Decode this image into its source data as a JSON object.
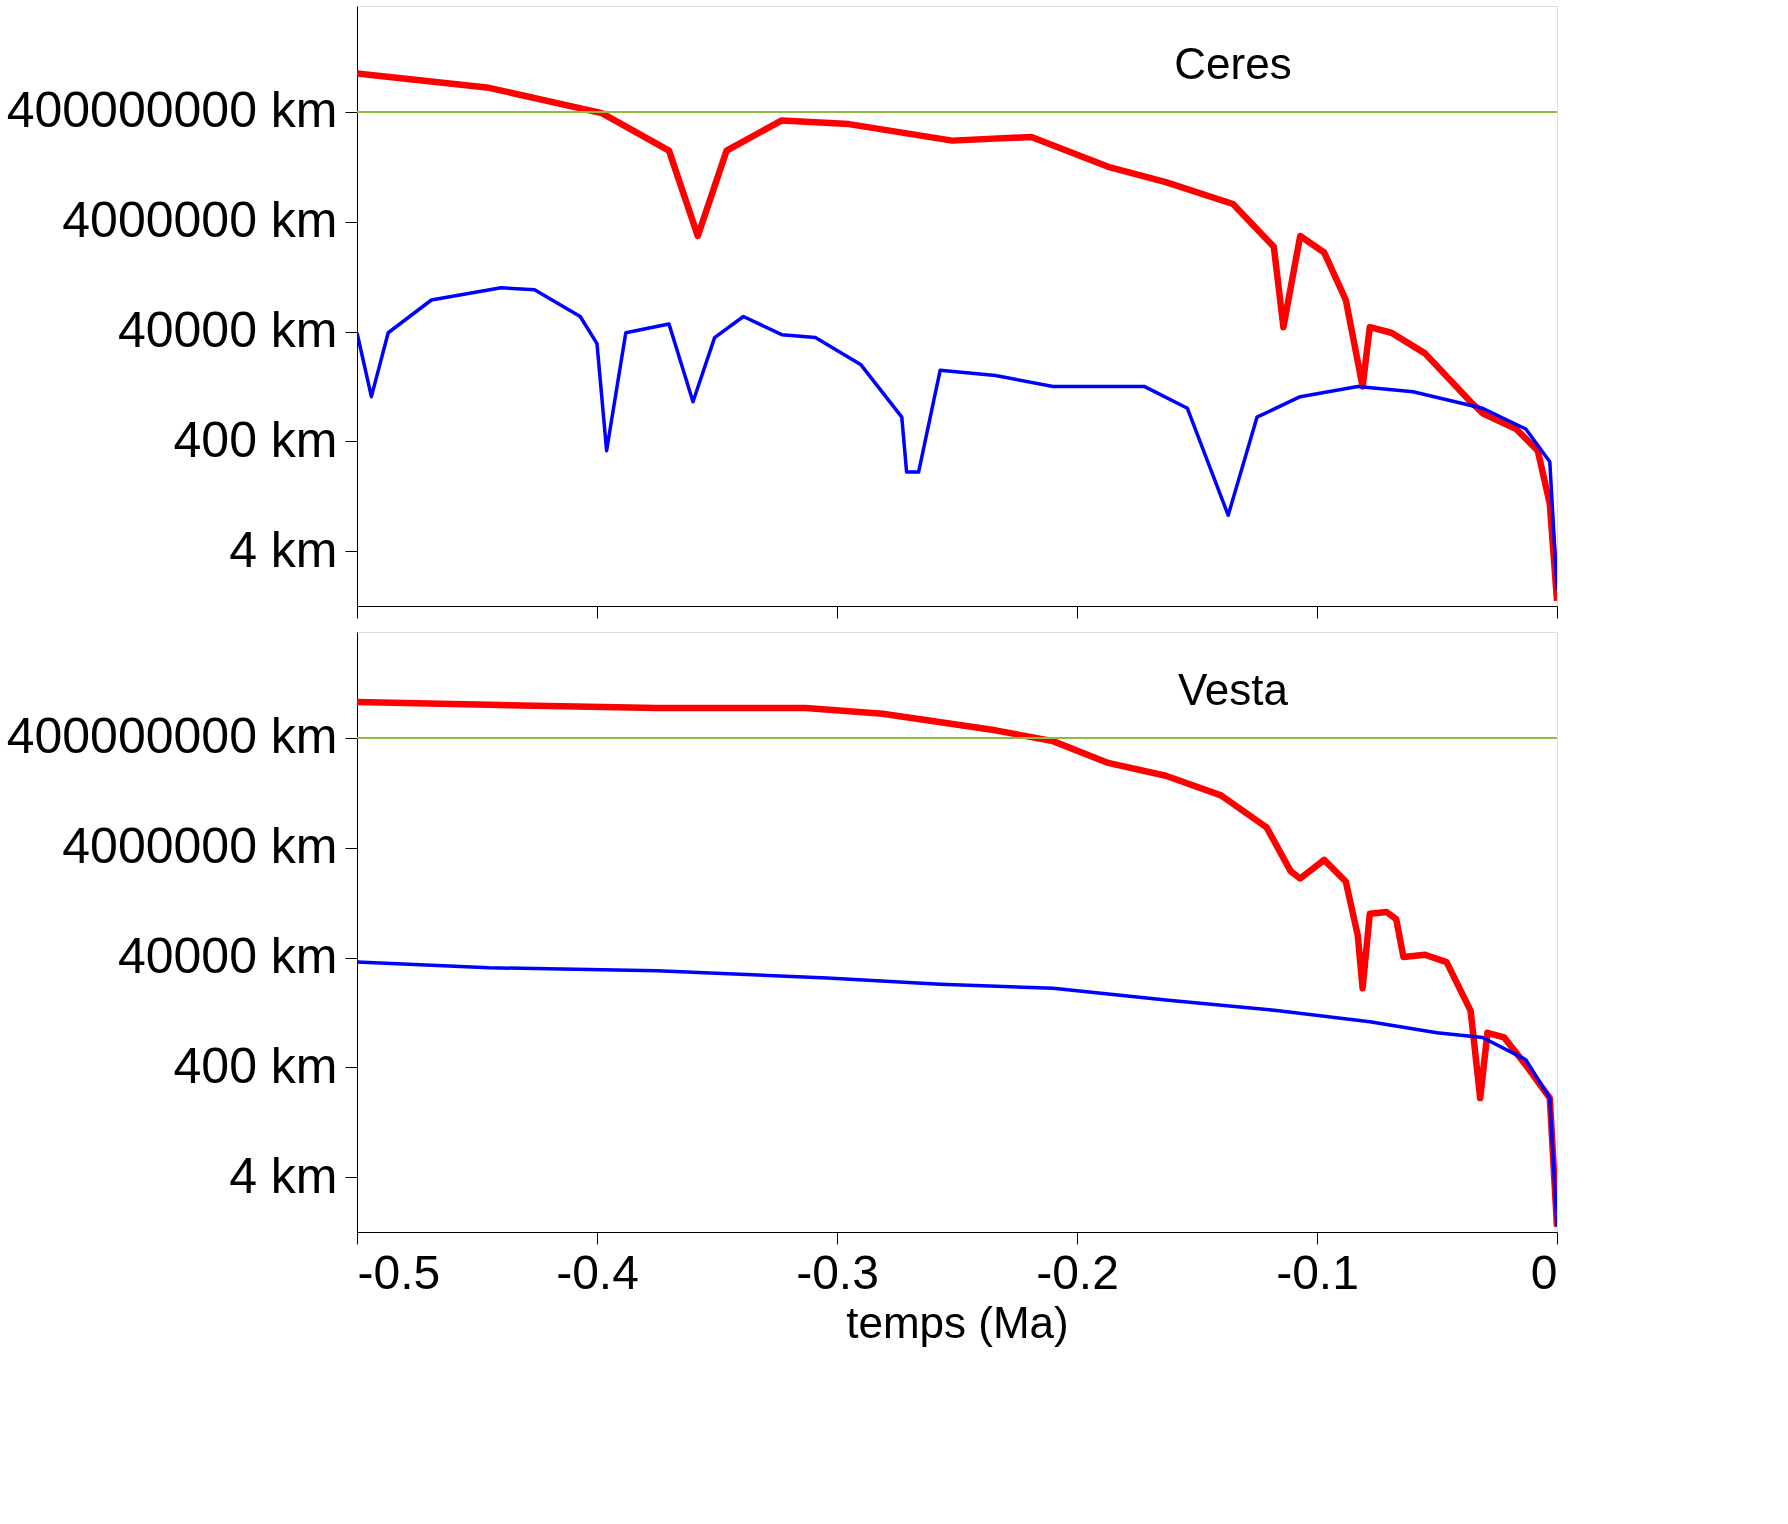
{
  "chart_data": [
    {
      "type": "line",
      "annotations": [
        "Ceres"
      ],
      "xlim": [
        -0.5,
        0
      ],
      "xticks": [
        -0.5,
        -0.4,
        -0.3,
        -0.2,
        -0.1,
        0
      ],
      "ylim": [
        0.4,
        34000000000
      ],
      "yticks": [
        {
          "value": 4,
          "label": "4 km"
        },
        {
          "value": 400,
          "label": "400 km"
        },
        {
          "value": 40000,
          "label": "40000 km"
        },
        {
          "value": 4000000,
          "label": "4000000 km"
        },
        {
          "value": 400000000,
          "label": "400000000 km"
        }
      ],
      "log": "y",
      "grid": false,
      "tick_labels": "y",
      "ref_lines": [
        {
          "axis": "y",
          "value": 400000000,
          "color": "#8fbc3f"
        }
      ],
      "series": [
        {
          "color": "#ff0000",
          "x": [
            -0.5,
            -0.445,
            -0.398,
            -0.37,
            -0.358,
            -0.346,
            -0.323,
            -0.295,
            -0.252,
            -0.219,
            -0.187,
            -0.163,
            -0.135,
            -0.118,
            -0.114,
            -0.107,
            -0.097,
            -0.088,
            -0.081,
            -0.078,
            -0.069,
            -0.055,
            -0.036,
            -0.031,
            -0.017,
            -0.008,
            -0.003,
            0
          ],
          "values": [
            2000000000.0,
            1100000000.0,
            380000000.0,
            79000000.0,
            2200000.0,
            79000000.0,
            280000000.0,
            240000000.0,
            120000000.0,
            140000000.0,
            40000000.0,
            21000000.0,
            8400000.0,
            1400000.0,
            48000.0,
            2200000.0,
            1100000.0,
            150000.0,
            4000.0,
            48000.0,
            38000.0,
            16000.0,
            2100.0,
            1300.0,
            670,
            270,
            29,
            0.5
          ]
        },
        {
          "color": "#0000ff",
          "x": [
            -0.5,
            -0.494,
            -0.487,
            -0.469,
            -0.44,
            -0.426,
            -0.407,
            -0.4,
            -0.396,
            -0.388,
            -0.37,
            -0.36,
            -0.351,
            -0.339,
            -0.323,
            -0.309,
            -0.29,
            -0.273,
            -0.271,
            -0.266,
            -0.257,
            -0.234,
            -0.21,
            -0.172,
            -0.154,
            -0.137,
            -0.125,
            -0.107,
            -0.083,
            -0.06,
            -0.031,
            -0.013,
            -0.003,
            0
          ],
          "values": [
            38000.0,
            2600.0,
            38000.0,
            150000.0,
            250000.0,
            230000.0,
            75000.0,
            24000.0,
            270,
            38000.0,
            55000.0,
            2100.0,
            31000.0,
            75000.0,
            35000.0,
            31000.0,
            9900.0,
            1100.0,
            110,
            110,
            7900.0,
            6300.0,
            4000.0,
            4000.0,
            1600.0,
            18,
            1100.0,
            2600.0,
            4000.0,
            3200.0,
            1600.0,
            670,
            170,
            0.8
          ]
        }
      ]
    },
    {
      "type": "line",
      "annotations": [
        "Vesta"
      ],
      "xlabel": "temps (Ma)",
      "xlim": [
        -0.5,
        0
      ],
      "xticks": [
        -0.5,
        -0.4,
        -0.3,
        -0.2,
        -0.1,
        0
      ],
      "ylim": [
        0.4,
        34000000000
      ],
      "yticks": [
        {
          "value": 4,
          "label": "4 km"
        },
        {
          "value": 400,
          "label": "400 km"
        },
        {
          "value": 40000,
          "label": "40000 km"
        },
        {
          "value": 4000000,
          "label": "4000000 km"
        },
        {
          "value": 400000000,
          "label": "400000000 km"
        }
      ],
      "log": "y",
      "grid": false,
      "ref_lines": [
        {
          "axis": "y",
          "value": 400000000,
          "color": "#8fbc3f"
        }
      ],
      "series": [
        {
          "color": "#ff0000",
          "x": [
            -0.5,
            -0.445,
            -0.375,
            -0.313,
            -0.281,
            -0.234,
            -0.21,
            -0.187,
            -0.163,
            -0.14,
            -0.121,
            -0.111,
            -0.107,
            -0.097,
            -0.088,
            -0.083,
            -0.081,
            -0.078,
            -0.071,
            -0.067,
            -0.064,
            -0.055,
            -0.046,
            -0.036,
            -0.032,
            -0.029,
            -0.022,
            -0.013,
            -0.003,
            0
          ],
          "values": [
            1800000000.0,
            1600000000.0,
            1400000000.0,
            1400000000.0,
            1100000000.0,
            550000000.0,
            350000000.0,
            140000000.0,
            82000000.0,
            36000000.0,
            9400000.0,
            1500000.0,
            1100000.0,
            2400000.0,
            970000.0,
            100000.0,
            11000.0,
            250000.0,
            270000.0,
            200000.0,
            41000.0,
            45000.0,
            33000.0,
            4300.0,
            110,
            1700.0,
            1400.0,
            440,
            110,
            0.5
          ]
        },
        {
          "color": "#0000ff",
          "x": [
            -0.5,
            -0.445,
            -0.375,
            -0.304,
            -0.257,
            -0.21,
            -0.163,
            -0.116,
            -0.078,
            -0.05,
            -0.031,
            -0.013,
            -0.003,
            0
          ],
          "values": [
            33000.0,
            26000.0,
            23000.0,
            17000.0,
            13000.0,
            11000.0,
            6700.0,
            4300.0,
            2700.0,
            1700.0,
            1400.0,
            550,
            110,
            0.5
          ]
        }
      ]
    }
  ]
}
